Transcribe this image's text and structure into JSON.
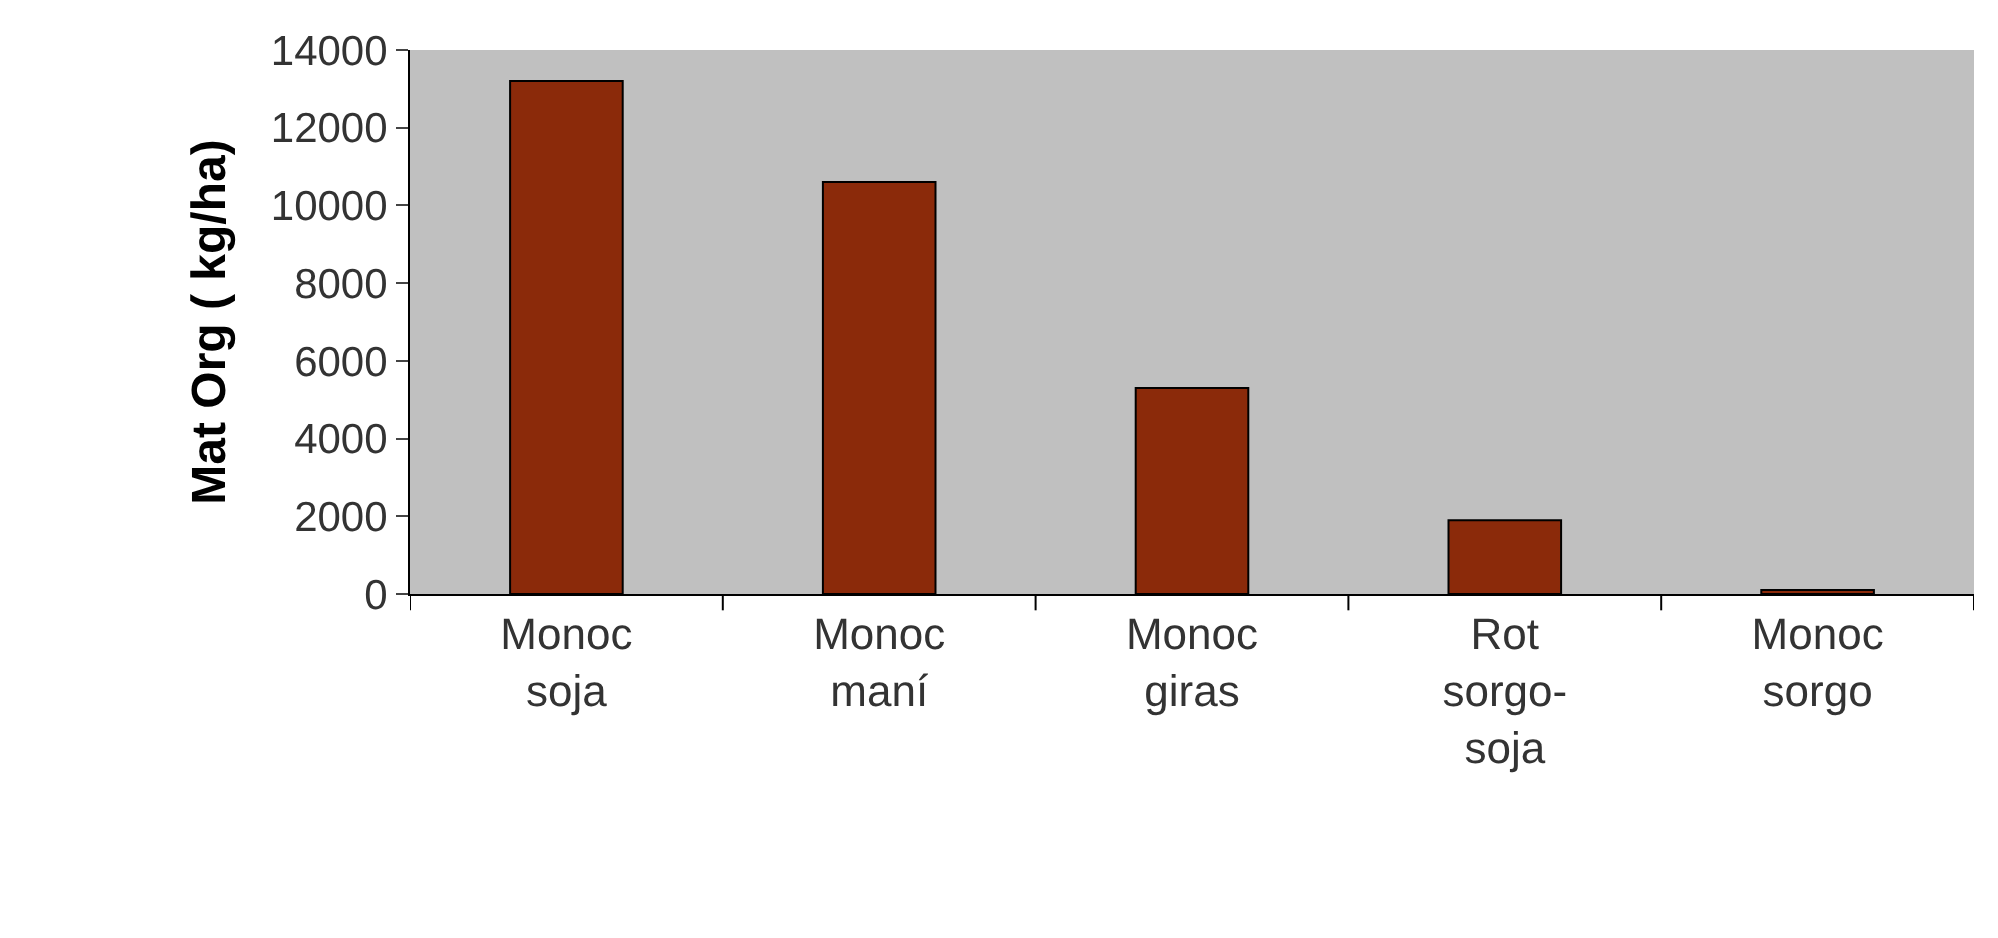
{
  "chart_data": {
    "type": "bar",
    "ylabel": "Mat Org ( kg/ha)",
    "categories": [
      "Monoc soja",
      "Monoc maní",
      "Monoc giras",
      "Rot sorgo-soja",
      "Monoc sorgo"
    ],
    "values": [
      13200,
      10600,
      5300,
      1900,
      100
    ],
    "color": "#8b2a0a",
    "ylim": [
      0,
      14000
    ],
    "yticks": [
      0,
      2000,
      4000,
      6000,
      8000,
      10000,
      12000,
      14000
    ],
    "grid": false
  }
}
